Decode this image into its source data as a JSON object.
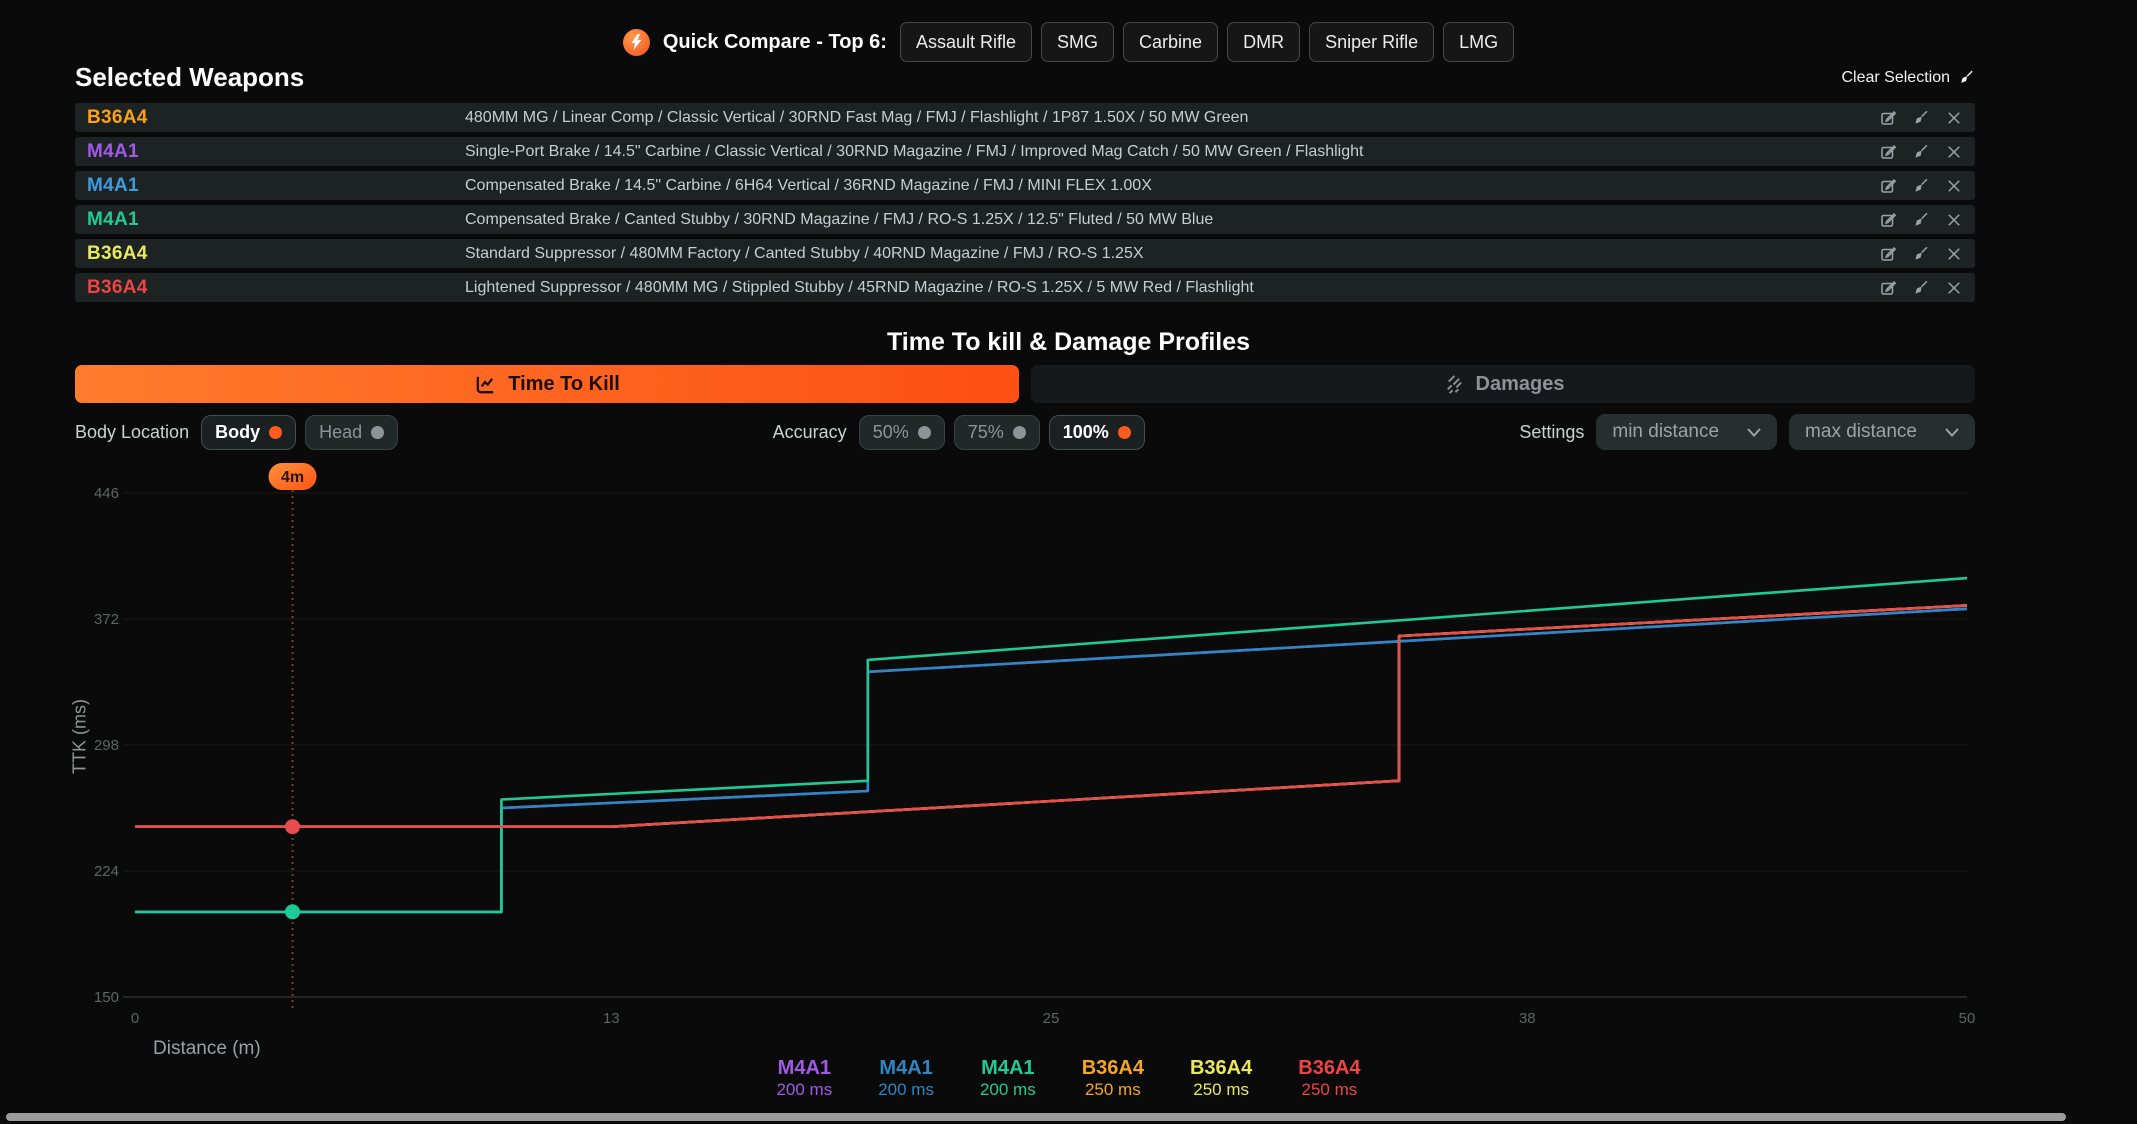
{
  "theme": {
    "accent_orange": "#fd5a1e",
    "row_bg": "#1c2322"
  },
  "top_bar": {
    "icon": "lightning-icon",
    "label": "Quick Compare - Top 6:",
    "buttons": [
      "Assault Rifle",
      "SMG",
      "Carbine",
      "DMR",
      "Sniper Rifle",
      "LMG"
    ]
  },
  "selected_weapons": {
    "title": "Selected Weapons",
    "clear_label": "Clear Selection",
    "rows": [
      {
        "name": "B36A4",
        "color": "#ffa115",
        "desc": "480MM MG / Linear Comp / Classic Vertical / 30RND Fast Mag / FMJ / Flashlight / 1P87 1.50X / 50 MW Green"
      },
      {
        "name": "M4A1",
        "color": "#a259e6",
        "desc": "Single-Port Brake / 14.5\" Carbine / Classic Vertical / 30RND Magazine / FMJ / Improved Mag Catch / 50 MW Green / Flashlight"
      },
      {
        "name": "M4A1",
        "color": "#3f9be0",
        "desc": "Compensated Brake / 14.5\" Carbine / 6H64 Vertical / 36RND Magazine / FMJ / MINI FLEX 1.00X"
      },
      {
        "name": "M4A1",
        "color": "#25c995",
        "desc": "Compensated Brake / Canted Stubby / 30RND Magazine / FMJ / RO-S 1.25X / 12.5\" Fluted / 50 MW Blue"
      },
      {
        "name": "B36A4",
        "color": "#e9e95e",
        "desc": "Standard Suppressor / 480MM Factory / Canted Stubby / 40RND Magazine / FMJ / RO-S 1.25X"
      },
      {
        "name": "B36A4",
        "color": "#ef4444",
        "desc": "Lightened Suppressor / 480MM MG / Stippled Stubby / 45RND Magazine / RO-S 1.25X / 5 MW Red / Flashlight"
      }
    ]
  },
  "section": {
    "title": "Time To kill & Damage Profiles",
    "tabs": [
      {
        "label": "Time To Kill",
        "active": true
      },
      {
        "label": "Damages",
        "active": false
      }
    ]
  },
  "controls": {
    "body_location": {
      "label": "Body Location",
      "options": [
        {
          "label": "Body",
          "active": true
        },
        {
          "label": "Head",
          "active": false
        }
      ]
    },
    "accuracy": {
      "label": "Accuracy",
      "options": [
        {
          "label": "50%",
          "active": false
        },
        {
          "label": "75%",
          "active": false
        },
        {
          "label": "100%",
          "active": true
        }
      ]
    },
    "settings": {
      "label": "Settings",
      "dropdowns": [
        "min distance",
        "max distance"
      ]
    }
  },
  "chart_data": {
    "type": "line",
    "xlabel": "Distance (m)",
    "ylabel": "TTK (ms)",
    "xlim": [
      0,
      50
    ],
    "ylim": [
      150,
      460
    ],
    "grid": true,
    "y_ticks": [
      150,
      224,
      298,
      372,
      446
    ],
    "x_ticks": [
      {
        "x": 0,
        "label": "0"
      },
      {
        "x": 13,
        "label": "13"
      },
      {
        "x": 25,
        "label": "25"
      },
      {
        "x": 38,
        "label": "38"
      },
      {
        "x": 50,
        "label": "50"
      }
    ],
    "marker": {
      "label": "4m",
      "x": 4.3
    },
    "series": [
      {
        "name": "M4A1",
        "ttk": "200 ms",
        "color": "#a259e6",
        "points": [
          [
            0,
            200
          ],
          [
            10,
            200
          ],
          [
            10,
            261
          ],
          [
            20,
            271
          ],
          [
            20,
            341
          ],
          [
            50,
            378
          ]
        ],
        "note": "hidden under blue line"
      },
      {
        "name": "M4A1",
        "ttk": "200 ms",
        "color": "#2e86c4",
        "points": [
          [
            0,
            200
          ],
          [
            10,
            200
          ],
          [
            10,
            261
          ],
          [
            20,
            271
          ],
          [
            20,
            341
          ],
          [
            50,
            378
          ]
        ]
      },
      {
        "name": "M4A1",
        "ttk": "200 ms",
        "color": "#1ecb94",
        "points": [
          [
            0,
            200
          ],
          [
            10,
            200
          ],
          [
            10,
            266
          ],
          [
            20,
            277
          ],
          [
            20,
            348
          ],
          [
            50,
            396
          ]
        ]
      },
      {
        "name": "B36A4",
        "ttk": "250 ms",
        "color": "#f5a623",
        "points": [
          [
            0,
            250
          ],
          [
            13,
            250
          ],
          [
            34.5,
            277
          ],
          [
            34.5,
            362
          ],
          [
            50,
            380
          ]
        ],
        "note": "hidden under red line"
      },
      {
        "name": "B36A4",
        "ttk": "250 ms",
        "color": "#e9e95e",
        "points": [
          [
            0,
            250
          ],
          [
            13,
            250
          ],
          [
            34.5,
            277
          ],
          [
            34.5,
            362
          ],
          [
            50,
            380
          ]
        ],
        "note": "hidden under red line"
      },
      {
        "name": "B36A4",
        "ttk": "250 ms",
        "color": "#e84c4c",
        "points": [
          [
            0,
            250
          ],
          [
            13,
            250
          ],
          [
            34.5,
            277
          ],
          [
            34.5,
            362
          ],
          [
            50,
            380
          ]
        ]
      }
    ],
    "dots": [
      {
        "x": 4.3,
        "v": 250,
        "color": "#e84c4c"
      },
      {
        "x": 4.3,
        "v": 200,
        "color": "#1ecb94"
      }
    ]
  },
  "legend": [
    {
      "name": "M4A1",
      "value": "200 ms",
      "color": "#a259e6"
    },
    {
      "name": "M4A1",
      "value": "200 ms",
      "color": "#2e86c4"
    },
    {
      "name": "M4A1",
      "value": "200 ms",
      "color": "#1ecb94"
    },
    {
      "name": "B36A4",
      "value": "250 ms",
      "color": "#f5a623"
    },
    {
      "name": "B36A4",
      "value": "250 ms",
      "color": "#e9e95e"
    },
    {
      "name": "B36A4",
      "value": "250 ms",
      "color": "#ef4444"
    }
  ]
}
